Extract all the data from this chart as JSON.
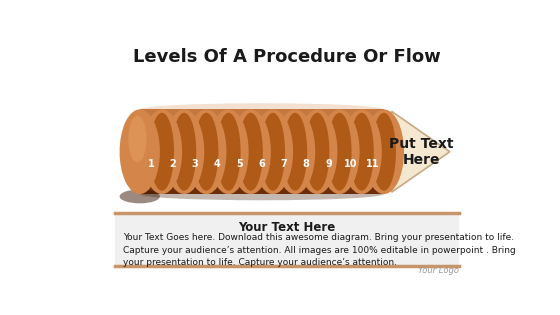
{
  "title": "Levels Of A Procedure Or Flow",
  "title_fontsize": 13,
  "background_color": "#ffffff",
  "stages": [
    1,
    2,
    3,
    4,
    5,
    6,
    7,
    8,
    9,
    10,
    11
  ],
  "cyl_dark": "#6B2E08",
  "cyl_mid": "#B05A18",
  "cyl_light": "#D4854A",
  "cyl_face": "#D4854A",
  "cyl_highlight": "#E8A060",
  "cyl_groove_dark": "#4A1E04",
  "cyl_groove_light": "#E09050",
  "arrow_fill": "#F5E8D0",
  "arrow_edge": "#C8A882",
  "text_white": "#FFFFFF",
  "text_dark": "#1a1a1a",
  "put_text": "Put Text\nHere",
  "put_text_fontsize": 10,
  "section_title": "Your Text Here",
  "section_body": "Your Text Goes here. Download this awesome diagram. Bring your presentation to life.\nCapture your audience’s attention. All images are 100% editable in powerpoint . Bring\nyour presentation to life. Capture your audience’s attention.",
  "section_title_fontsize": 8.5,
  "section_body_fontsize": 6.5,
  "logo_text": "Your Logo",
  "logo_fontsize": 6,
  "box_border_color": "#C8956A",
  "box_fill": "#F0F0F0"
}
